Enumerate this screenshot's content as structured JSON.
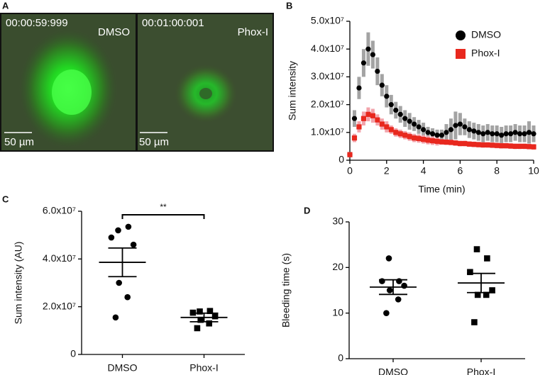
{
  "chart_data": [
    {
      "type": "image",
      "panel": "A",
      "images": [
        {
          "timestamp": "00:00:59:999",
          "label": "DMSO",
          "scale_bar": "50 µm"
        },
        {
          "timestamp": "00:01:00:001",
          "label": "Phox-I",
          "scale_bar": "50 µm"
        }
      ]
    },
    {
      "type": "line",
      "panel": "B",
      "xlabel": "Time (min)",
      "ylabel": "Sum intensity",
      "xlim": [
        0,
        10
      ],
      "xticks": [
        0,
        2,
        4,
        6,
        8,
        10
      ],
      "ylim": [
        0,
        50000000.0
      ],
      "yticks": [
        0,
        {
          "value": 10000000.0,
          "label": "1.0x10⁷"
        },
        {
          "value": 20000000.0,
          "label": "2.0x10⁷"
        },
        {
          "value": 30000000.0,
          "label": "3.0x10⁷"
        },
        {
          "value": 40000000.0,
          "label": "4.0x10⁷"
        },
        {
          "value": 50000000.0,
          "label": "5.0x10⁷"
        }
      ],
      "legend": "top-right",
      "x": [
        0,
        0.25,
        0.5,
        0.75,
        1,
        1.25,
        1.5,
        1.75,
        2,
        2.25,
        2.5,
        2.75,
        3,
        3.25,
        3.5,
        3.75,
        4,
        4.25,
        4.5,
        4.75,
        5,
        5.25,
        5.5,
        5.75,
        6,
        6.25,
        6.5,
        6.75,
        7,
        7.25,
        7.5,
        7.75,
        8,
        8.25,
        8.5,
        8.75,
        9,
        9.25,
        9.5,
        9.75,
        10
      ],
      "series": [
        {
          "name": "DMSO",
          "color": "#000000",
          "error_color": "#a3a3a3",
          "marker": "circle",
          "values": [
            2000000.0,
            15000000.0,
            26000000.0,
            35000000.0,
            40000000.0,
            38000000.0,
            32000000.0,
            27000000.0,
            23000000.0,
            20000000.0,
            18000000.0,
            16500000.0,
            15000000.0,
            14000000.0,
            13000000.0,
            12000000.0,
            11000000.0,
            10000000.0,
            9500000.0,
            9000000.0,
            9000000.0,
            10000000.0,
            11000000.0,
            12500000.0,
            13000000.0,
            12000000.0,
            11000000.0,
            10500000.0,
            10000000.0,
            9500000.0,
            10000000.0,
            9500000.0,
            9500000.0,
            9000000.0,
            9500000.0,
            9500000.0,
            10000000.0,
            9500000.0,
            9500000.0,
            10000000.0,
            9500000.0
          ],
          "errors": [
            1000000.0,
            3000000.0,
            4000000.0,
            5000000.0,
            6000000.0,
            5000000.0,
            5000000.0,
            4000000.0,
            4000000.0,
            3500000.0,
            3000000.0,
            3000000.0,
            3000000.0,
            3000000.0,
            2500000.0,
            2500000.0,
            2500000.0,
            2000000.0,
            2000000.0,
            2000000.0,
            2000000.0,
            3000000.0,
            4000000.0,
            5000000.0,
            4000000.0,
            3000000.0,
            3000000.0,
            3000000.0,
            3000000.0,
            3000000.0,
            3000000.0,
            3000000.0,
            3000000.0,
            3000000.0,
            3000000.0,
            3000000.0,
            3000000.0,
            3000000.0,
            3000000.0,
            4000000.0,
            3000000.0
          ]
        },
        {
          "name": "Phox-I",
          "color": "#e8281e",
          "error_color": "#f2a3ab",
          "marker": "square",
          "values": [
            2000000.0,
            8000000.0,
            12000000.0,
            15000000.0,
            16500000.0,
            16000000.0,
            14500000.0,
            13000000.0,
            12000000.0,
            11000000.0,
            10000000.0,
            9500000.0,
            9000000.0,
            8500000.0,
            8000000.0,
            7800000.0,
            7500000.0,
            7200000.0,
            7000000.0,
            6800000.0,
            6600000.0,
            6500000.0,
            6400000.0,
            6200000.0,
            6000000.0,
            6000000.0,
            5800000.0,
            5700000.0,
            5600000.0,
            5500000.0,
            5500000.0,
            5400000.0,
            5300000.0,
            5200000.0,
            5200000.0,
            5100000.0,
            5000000.0,
            5000000.0,
            5000000.0,
            4900000.0,
            4800000.0
          ],
          "errors": [
            500000.0,
            1500000.0,
            2000000.0,
            2500000.0,
            2500000.0,
            2500000.0,
            2000000.0,
            2000000.0,
            2000000.0,
            1500000.0,
            1500000.0,
            1500000.0,
            1500000.0,
            1500000.0,
            1500000.0,
            1500000.0,
            1500000.0,
            1500000.0,
            1500000.0,
            1500000.0,
            1000000.0,
            1000000.0,
            1000000.0,
            1000000.0,
            1000000.0,
            1000000.0,
            1000000.0,
            1000000.0,
            1000000.0,
            1000000.0,
            1000000.0,
            1000000.0,
            1000000.0,
            1000000.0,
            1000000.0,
            1000000.0,
            1000000.0,
            1000000.0,
            1000000.0,
            1000000.0,
            1000000.0
          ]
        }
      ]
    },
    {
      "type": "dot",
      "panel": "C",
      "ylabel": "Sum intensity (AU)",
      "ylim": [
        0,
        60000000.0
      ],
      "yticks": [
        0,
        {
          "value": 20000000.0,
          "label": "2.0x10⁷"
        },
        {
          "value": 40000000.0,
          "label": "4.0x10⁷"
        },
        {
          "value": 60000000.0,
          "label": "6.0x10⁷"
        }
      ],
      "categories": [
        "DMSO",
        "Phox-I"
      ],
      "markers": [
        "circle",
        "square"
      ],
      "color": "#000000",
      "points": [
        [
          52000000.0,
          53500000.0,
          49000000.0,
          46000000.0,
          30000000.0,
          24000000.0,
          15500000.0
        ],
        [
          18000000.0,
          18200000.0,
          17500000.0,
          16000000.0,
          14500000.0,
          13000000.0,
          11000000.0
        ]
      ],
      "means": [
        38600000.0,
        15500000.0
      ],
      "sems": [
        6000000.0,
        1800000.0
      ],
      "annotation": "**"
    },
    {
      "type": "dot",
      "panel": "D",
      "ylabel": "Bleeding time (s)",
      "ylim": [
        0,
        30
      ],
      "yticks": [
        0,
        10,
        20,
        30
      ],
      "categories": [
        "DMSO",
        "Phox-I"
      ],
      "markers": [
        "circle",
        "square"
      ],
      "color": "#000000",
      "points": [
        [
          22,
          17,
          17,
          16,
          15,
          13,
          10
        ],
        [
          24,
          22,
          19,
          15,
          14,
          14,
          8
        ]
      ],
      "means": [
        15.7,
        16.6
      ],
      "sems": [
        1.6,
        2.1
      ]
    }
  ]
}
